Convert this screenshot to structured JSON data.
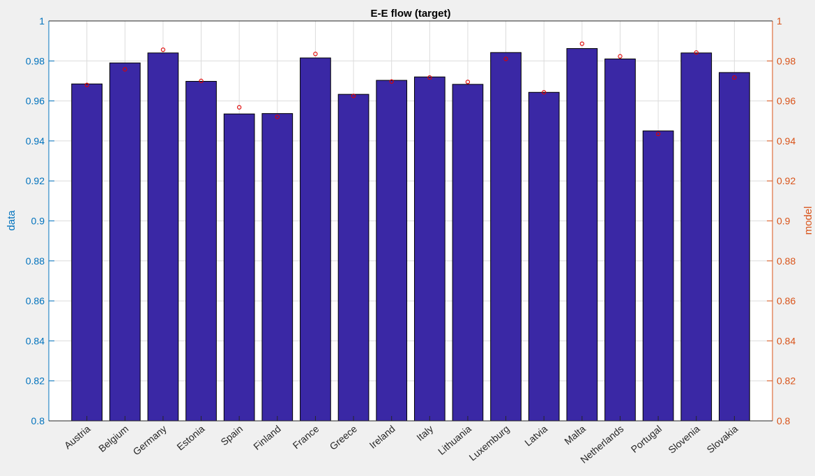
{
  "chart_data": {
    "type": "bar",
    "title": "E-E flow (target)",
    "ylabel_left": "data",
    "ylabel_right": "model",
    "ylim": [
      0.8,
      1
    ],
    "yticks": [
      "0.8",
      "0.82",
      "0.84",
      "0.86",
      "0.88",
      "0.9",
      "0.92",
      "0.94",
      "0.96",
      "0.98",
      "1"
    ],
    "grid": true,
    "categories": [
      "Austria",
      "Belgium",
      "Germany",
      "Estonia",
      "Spain",
      "Finland",
      "France",
      "Greece",
      "Ireland",
      "Italy",
      "Lithuania",
      "Luxemburg",
      "Latvia",
      "Malta",
      "Netherlands",
      "Portugal",
      "Slovenia",
      "Slovakia"
    ],
    "series": [
      {
        "type": "bar",
        "values": [
          0.9685,
          0.979,
          0.984,
          0.9698,
          0.9535,
          0.9537,
          0.9815,
          0.9633,
          0.9703,
          0.972,
          0.9683,
          0.9842,
          0.9643,
          0.9862,
          0.981,
          0.945,
          0.984,
          0.9742
        ],
        "color": "#3a28a5"
      },
      {
        "type": "scatter",
        "values": [
          0.968,
          0.9758,
          0.9856,
          0.97,
          0.9568,
          0.952,
          0.9835,
          0.9625,
          0.9697,
          0.9717,
          0.9695,
          0.981,
          0.9643,
          0.9886,
          0.9823,
          0.9435,
          0.9842,
          0.9717
        ],
        "color": "#e00000"
      }
    ],
    "colors": {
      "left_axis": "#0072bd",
      "right_axis": "#d95319",
      "bar_edge": "#000000",
      "plot_bg": "#ffffff",
      "figure_bg": "#f0f0f0"
    }
  }
}
